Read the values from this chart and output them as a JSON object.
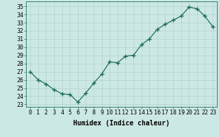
{
  "x": [
    0,
    1,
    2,
    3,
    4,
    5,
    6,
    7,
    8,
    9,
    10,
    11,
    12,
    13,
    14,
    15,
    16,
    17,
    18,
    19,
    20,
    21,
    22,
    23
  ],
  "y": [
    27.0,
    26.0,
    25.5,
    24.8,
    24.3,
    24.2,
    23.3,
    24.4,
    25.6,
    26.7,
    28.2,
    28.1,
    28.9,
    29.0,
    30.3,
    31.0,
    32.2,
    32.8,
    33.3,
    33.8,
    34.9,
    34.7,
    33.8,
    32.5
  ],
  "line_color": "#1a6b5a",
  "marker": "+",
  "marker_size": 4,
  "marker_linewidth": 1.0,
  "line_width": 0.9,
  "bg_color": "#cce8e4",
  "grid_color": "#b0d0cc",
  "xlabel": "Humidex (Indice chaleur)",
  "ylabel_ticks": [
    23,
    24,
    25,
    26,
    27,
    28,
    29,
    30,
    31,
    32,
    33,
    34,
    35
  ],
  "ylim": [
    22.7,
    35.6
  ],
  "xlim": [
    -0.5,
    23.5
  ],
  "xlabel_fontsize": 7,
  "tick_fontsize": 6,
  "font_family": "monospace"
}
